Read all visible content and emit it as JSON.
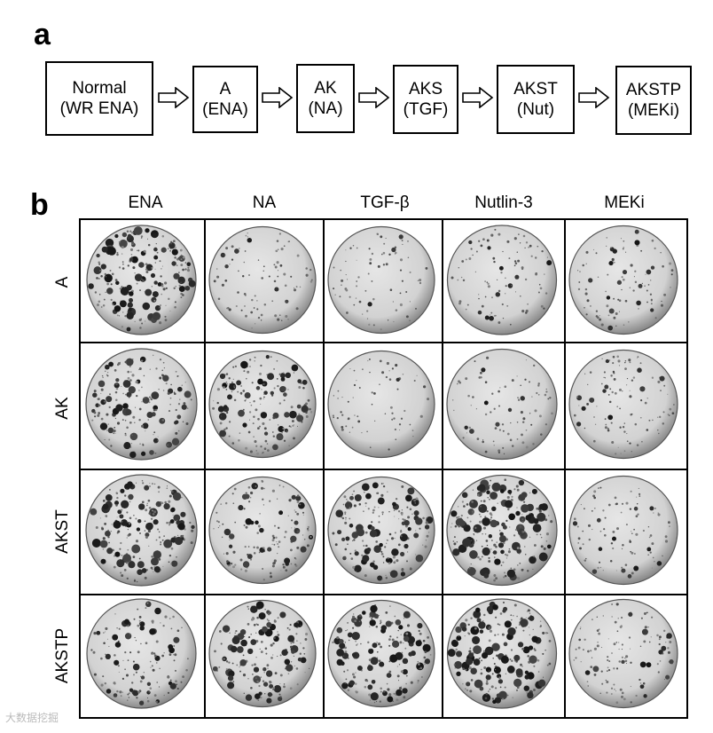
{
  "panel_a": {
    "label": "a",
    "steps": [
      {
        "line1": "Normal",
        "line2": "(WR ENA)"
      },
      {
        "line1": "A",
        "line2": "(ENA)"
      },
      {
        "line1": "AK",
        "line2": "(NA)"
      },
      {
        "line1": "AKS",
        "line2": "(TGF)"
      },
      {
        "line1": "AKST",
        "line2": "(Nut)"
      },
      {
        "line1": "AKSTP",
        "line2": "(MEKi)"
      }
    ]
  },
  "panel_b": {
    "label": "b",
    "columns": [
      "ENA",
      "NA",
      "TGF-β",
      "Nutlin-3",
      "MEKi"
    ],
    "rows": [
      "A",
      "AK",
      "AKST",
      "AKSTP"
    ],
    "colony_density": [
      [
        0.9,
        0.25,
        0.2,
        0.3,
        0.3
      ],
      [
        0.75,
        0.7,
        0.15,
        0.25,
        0.35
      ],
      [
        0.9,
        0.55,
        0.75,
        0.95,
        0.3
      ],
      [
        0.55,
        0.75,
        0.8,
        0.9,
        0.45
      ]
    ]
  },
  "watermark": "大数据挖掘"
}
